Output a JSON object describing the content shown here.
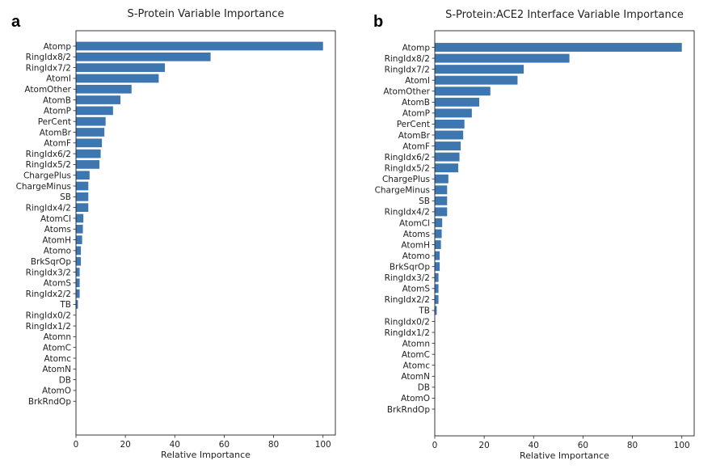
{
  "panels": [
    {
      "letter": "a",
      "chart_data": {
        "type": "bar",
        "orientation": "horizontal",
        "title": "S-Protein Variable Importance",
        "xlabel": "Relative Importance",
        "ylabel": "",
        "xlim": [
          0,
          105
        ],
        "xticks": [
          0,
          20,
          40,
          60,
          80,
          100
        ],
        "grid": false,
        "bar_color": "#3e77b0",
        "categories": [
          "Atomp",
          "RingIdx8/2",
          "RingIdx7/2",
          "AtomI",
          "AtomOther",
          "AtomB",
          "AtomP",
          "PerCent",
          "AtomBr",
          "AtomF",
          "RingIdx6/2",
          "RingIdx5/2",
          "ChargePlus",
          "ChargeMinus",
          "SB",
          "RingIdx4/2",
          "AtomCl",
          "Atoms",
          "AtomH",
          "Atomo",
          "BrkSqrOp",
          "RingIdx3/2",
          "AtomS",
          "RingIdx2/2",
          "TB",
          "RingIdx0/2",
          "RingIdx1/2",
          "Atomn",
          "AtomC",
          "Atomc",
          "AtomN",
          "DB",
          "AtomO",
          "BrkRndOp"
        ],
        "values": [
          100,
          54.5,
          36,
          33.5,
          22.5,
          18,
          15,
          12,
          11.5,
          10.5,
          10,
          9.5,
          5.5,
          5,
          5,
          5,
          3,
          2.8,
          2.5,
          2,
          2,
          1.5,
          1.5,
          1.5,
          0.8,
          0,
          0,
          0,
          0,
          0,
          0,
          0,
          0,
          0
        ]
      }
    },
    {
      "letter": "b",
      "chart_data": {
        "type": "bar",
        "orientation": "horizontal",
        "title": "S-Protein:ACE2 Interface Variable Importance",
        "xlabel": "Relative Importance",
        "ylabel": "",
        "xlim": [
          0,
          105
        ],
        "xticks": [
          0,
          20,
          40,
          60,
          80,
          100
        ],
        "grid": false,
        "bar_color": "#3e77b0",
        "categories": [
          "Atomp",
          "RingIdx8/2",
          "RingIdx7/2",
          "AtomI",
          "AtomOther",
          "AtomB",
          "AtomP",
          "PerCent",
          "AtomBr",
          "AtomF",
          "RingIdx6/2",
          "RingIdx5/2",
          "ChargePlus",
          "ChargeMinus",
          "SB",
          "RingIdx4/2",
          "AtomCl",
          "Atoms",
          "AtomH",
          "Atomo",
          "BrkSqrOp",
          "RingIdx3/2",
          "AtomS",
          "RingIdx2/2",
          "TB",
          "RingIdx0/2",
          "RingIdx1/2",
          "Atomn",
          "AtomC",
          "Atomc",
          "AtomN",
          "DB",
          "AtomO",
          "BrkRndOp"
        ],
        "values": [
          100,
          54.5,
          36,
          33.5,
          22.5,
          18,
          15,
          12,
          11.5,
          10.5,
          10,
          9.5,
          5.5,
          5,
          5,
          5,
          3,
          2.8,
          2.5,
          2,
          2,
          1.5,
          1.5,
          1.5,
          0.8,
          0,
          0,
          0,
          0,
          0,
          0,
          0,
          0,
          0
        ]
      }
    }
  ]
}
